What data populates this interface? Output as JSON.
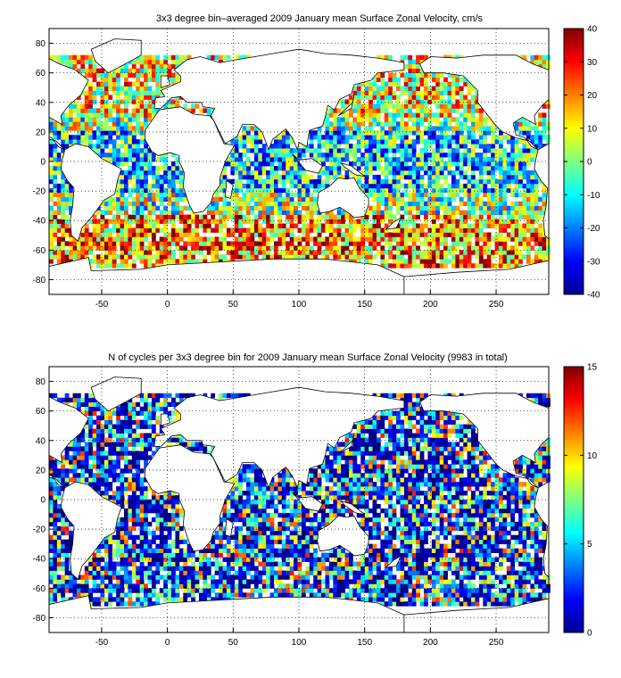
{
  "panels": [
    {
      "title": "3x3 degree bin–averaged 2009 January mean Surface Zonal Velocity, cm/s",
      "colorbar": {
        "min": -40,
        "max": 40,
        "ticks": [
          40,
          30,
          20,
          10,
          0,
          -10,
          -20,
          -30,
          -40
        ],
        "colormap": "jet"
      }
    },
    {
      "title": "N of cycles per 3x3 degree bin for 2009 January mean Surface Zonal Velocity (9983 in total)",
      "colorbar": {
        "min": 0,
        "max": 15,
        "ticks": [
          15,
          10,
          5,
          0
        ],
        "colormap": "jet"
      }
    }
  ],
  "chart_data": [
    {
      "type": "heatmap",
      "title": "3x3 degree bin–averaged 2009 January mean Surface Zonal Velocity, cm/s",
      "xlabel": "",
      "ylabel": "",
      "xlim": [
        -90,
        290
      ],
      "ylim": [
        -90,
        90
      ],
      "xticks": [
        -50,
        0,
        50,
        100,
        150,
        200,
        250
      ],
      "yticks": [
        80,
        60,
        40,
        20,
        0,
        -20,
        -40,
        -60,
        -80
      ],
      "grid": true,
      "bin_size_deg": 3,
      "value_range": [
        -40,
        40
      ],
      "units": "cm/s"
    },
    {
      "type": "heatmap",
      "title": "N of cycles per 3x3 degree bin for 2009 January mean Surface Zonal Velocity (9983 in total)",
      "xlabel": "",
      "ylabel": "",
      "xlim": [
        -90,
        290
      ],
      "ylim": [
        -90,
        90
      ],
      "xticks": [
        -50,
        0,
        50,
        100,
        150,
        200,
        250
      ],
      "yticks": [
        80,
        60,
        40,
        20,
        0,
        -20,
        -40,
        -60,
        -80
      ],
      "grid": true,
      "bin_size_deg": 3,
      "value_range": [
        0,
        15
      ],
      "total": 9983
    }
  ]
}
